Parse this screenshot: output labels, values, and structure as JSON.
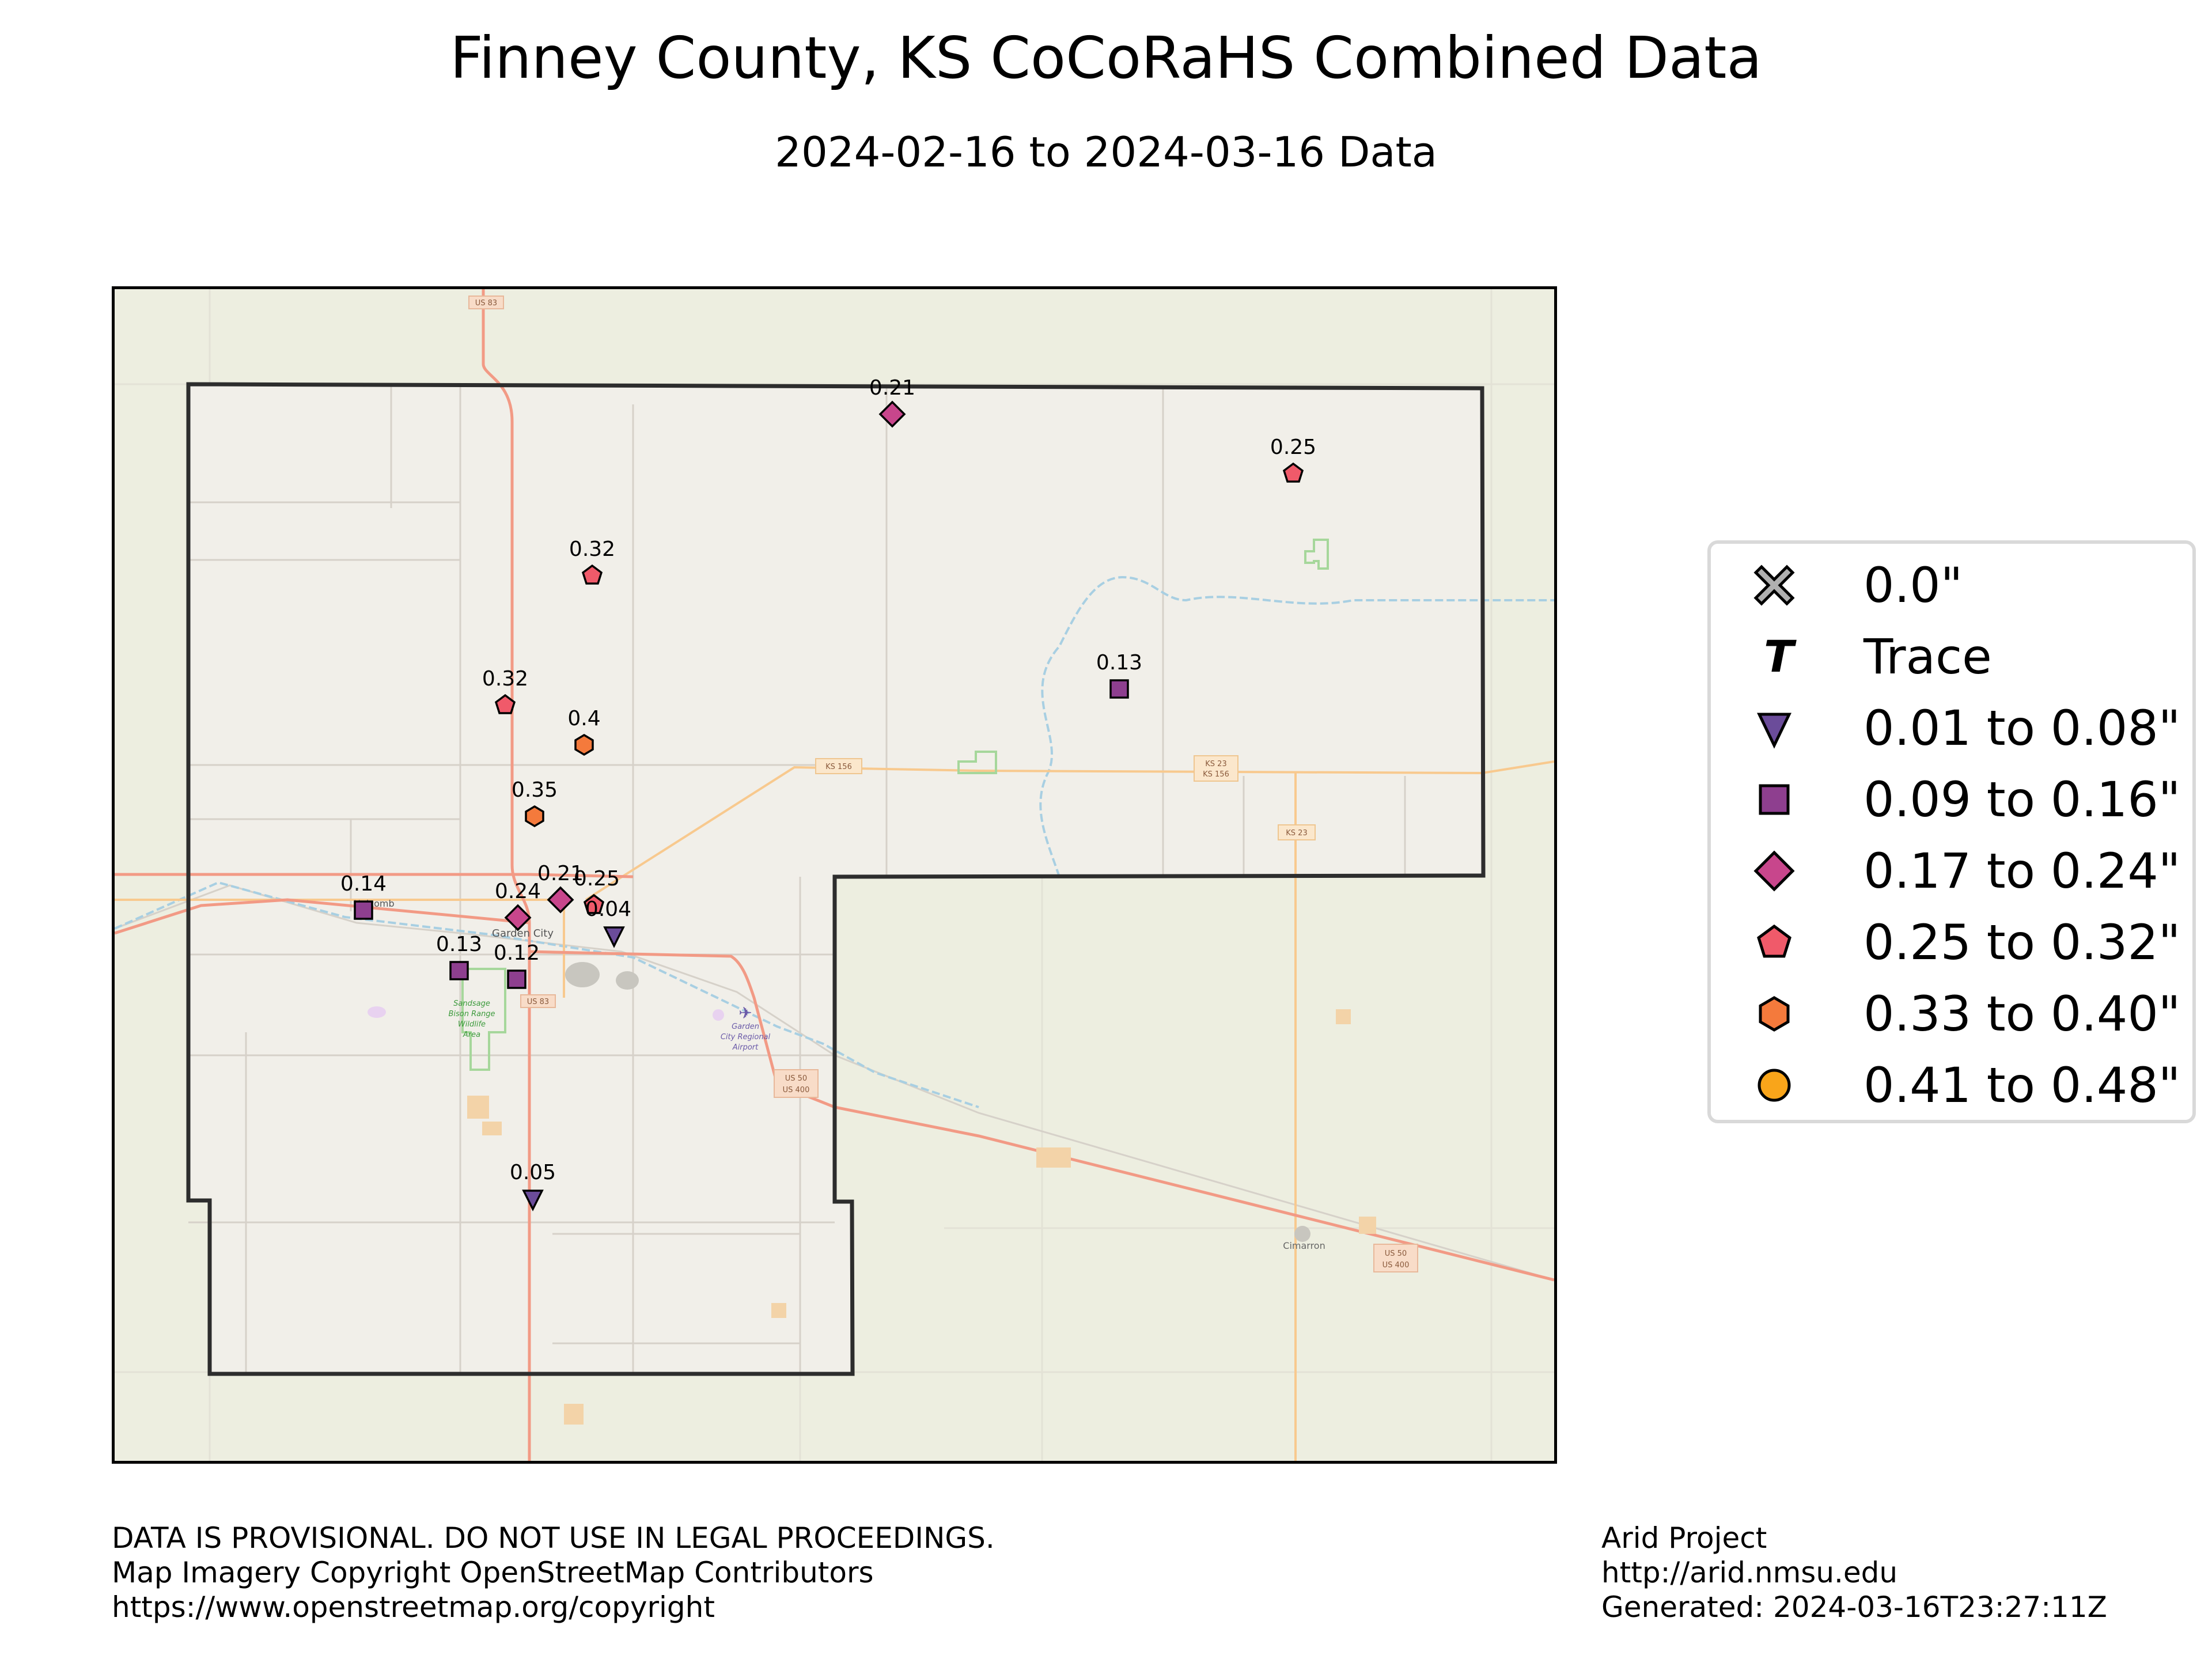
{
  "title": "Finney County, KS CoCoRaHS Combined Data",
  "subtitle": "2024-02-16 to 2024-03-16 Data",
  "map": {
    "place_labels": {
      "holcomb": "Holcomb",
      "garden_city": "Garden City",
      "refuge": [
        "Sandsage",
        "Bison Range",
        "Wildlife",
        "Area"
      ],
      "airport": [
        "Garden",
        "City Regional",
        "Airport"
      ],
      "cimarron": "Cimarron"
    },
    "road_shields": {
      "us83_north": "US 83",
      "us83_south": "US 83",
      "ks156": "KS 156",
      "ks23_ks156": [
        "KS 23",
        "KS 156"
      ],
      "ks23": "KS 23",
      "us50_city": [
        "US 50",
        "US 400"
      ],
      "us50_east": [
        "US 50",
        "US 400"
      ]
    },
    "colors": {
      "background": "#edeee0",
      "county": "#f1efe9",
      "road_major": "#f29a85",
      "road_secondary": "#f8c98e",
      "road_minor": "#cfcac3",
      "river": "#a8cfe2",
      "border": "#2d2d2d"
    }
  },
  "stations": [
    {
      "value": "0.21",
      "category": "0.17 to 0.24\""
    },
    {
      "value": "0.25",
      "category": "0.25 to 0.32\""
    },
    {
      "value": "0.32",
      "category": "0.25 to 0.32\""
    },
    {
      "value": "0.32",
      "category": "0.25 to 0.32\""
    },
    {
      "value": "0.4",
      "category": "0.33 to 0.40\""
    },
    {
      "value": "0.35",
      "category": "0.33 to 0.40\""
    },
    {
      "value": "0.13",
      "category": "0.09 to 0.16\""
    },
    {
      "value": "0.14",
      "category": "0.09 to 0.16\""
    },
    {
      "value": "0.24",
      "category": "0.17 to 0.24\""
    },
    {
      "value": "0.21",
      "category": "0.17 to 0.24\""
    },
    {
      "value": "0.25",
      "category": "0.25 to 0.32\""
    },
    {
      "value": "0.04",
      "category": "0.01 to 0.08\""
    },
    {
      "value": "0.13",
      "category": "0.09 to 0.16\""
    },
    {
      "value": "0.12",
      "category": "0.09 to 0.16\""
    },
    {
      "value": "0.05",
      "category": "0.01 to 0.08\""
    }
  ],
  "legend": {
    "items": [
      {
        "label": "0.0\"",
        "icon": "x-mark",
        "color": "#b0b0b0"
      },
      {
        "label": "Trace",
        "icon": "italic-t",
        "color": "#000000"
      },
      {
        "label": "0.01 to 0.08\"",
        "icon": "triangle-down",
        "color": "#6b4c9a"
      },
      {
        "label": "0.09 to 0.16\"",
        "icon": "square",
        "color": "#8e3f8f"
      },
      {
        "label": "0.17 to 0.24\"",
        "icon": "diamond",
        "color": "#c8468c"
      },
      {
        "label": "0.25 to 0.32\"",
        "icon": "pentagon",
        "color": "#f05a6a"
      },
      {
        "label": "0.33 to 0.40\"",
        "icon": "hexagon",
        "color": "#f47a3c"
      },
      {
        "label": "0.41 to 0.48\"",
        "icon": "circle",
        "color": "#f9a51a"
      }
    ]
  },
  "footer": {
    "left": [
      "DATA IS PROVISIONAL. DO NOT USE IN LEGAL PROCEEDINGS.",
      "Map Imagery Copyright OpenStreetMap Contributors",
      "https://www.openstreetmap.org/copyright"
    ],
    "right": [
      "Arid Project",
      "http://arid.nmsu.edu",
      "Generated: 2024-03-16T23:27:11Z"
    ]
  }
}
